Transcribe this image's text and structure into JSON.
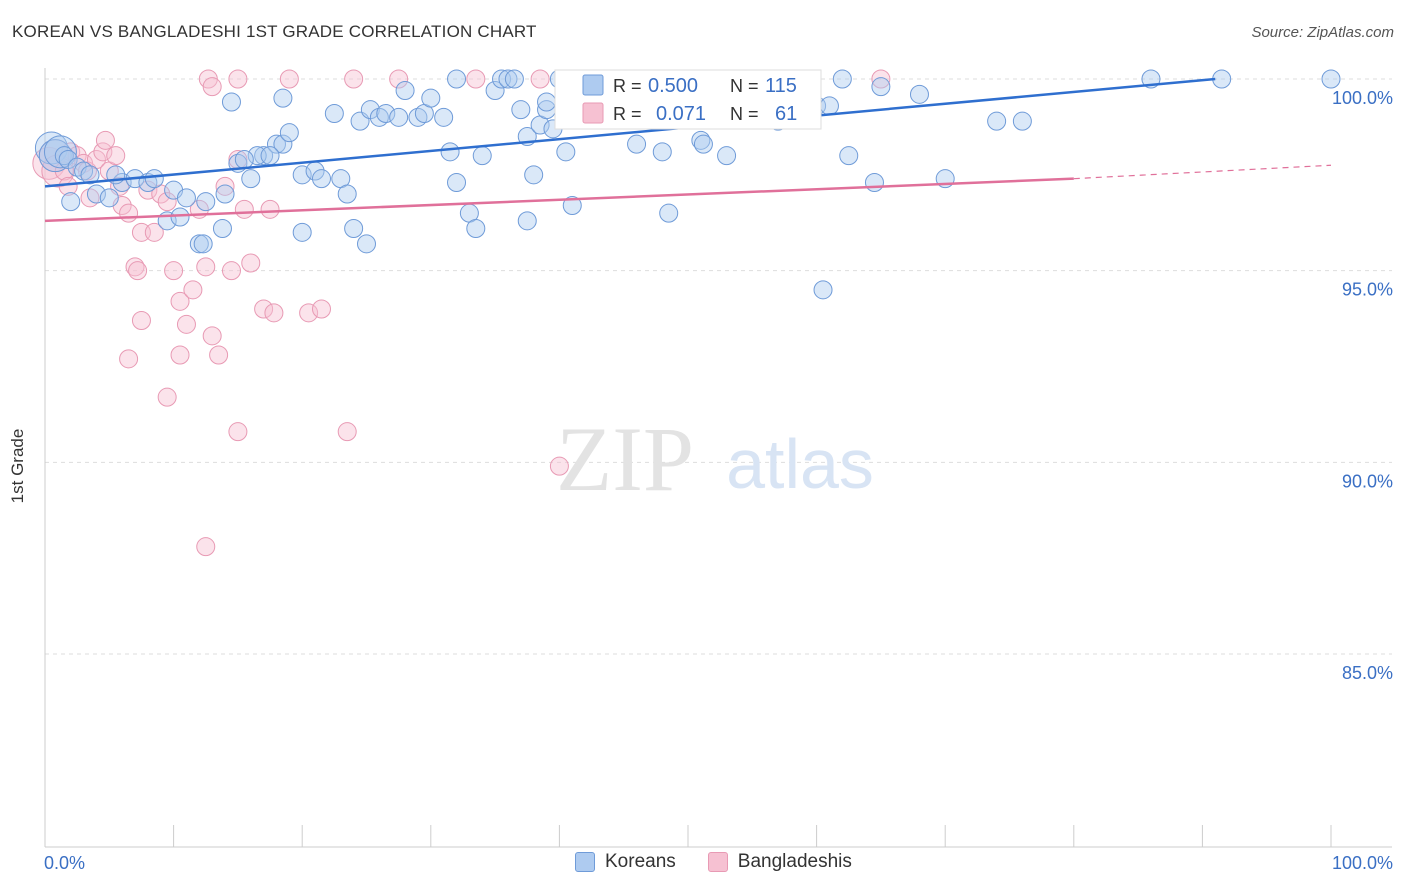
{
  "title": "KOREAN VS BANGLADESHI 1ST GRADE CORRELATION CHART",
  "source": "Source: ZipAtlas.com",
  "colors": {
    "korean_fill": "#aecbf0",
    "korean_stroke": "#6f9bd8",
    "korean_line": "#2f6fcf",
    "bangladeshi_fill": "#f6c1d2",
    "bangladeshi_stroke": "#e89ab4",
    "bangladeshi_line": "#e0709a",
    "axis_text": "#3a6fc4",
    "grid": "#dddddd"
  },
  "stats_legend": {
    "korean": {
      "r_label": "R =",
      "r_value": "0.500",
      "n_label": "N =",
      "n_value": "115"
    },
    "bangladeshi": {
      "r_label": "R =",
      "r_value": "0.071",
      "n_label": "N =",
      "n_value": "61"
    }
  },
  "watermark": {
    "zip": "ZIP",
    "atlas": "atlas"
  },
  "chart_data": {
    "type": "scatter",
    "title": "KOREAN VS BANGLADESHI 1ST GRADE CORRELATION CHART",
    "xlabel": "",
    "ylabel": "1st Grade",
    "xlim": [
      0,
      100
    ],
    "ylim": [
      80.5,
      100.8
    ],
    "x_tick_labels": [
      "0.0%",
      "100.0%"
    ],
    "y_ticks": [
      100,
      95,
      90,
      85
    ],
    "y_tick_labels": [
      "100.0%",
      "95.0%",
      "90.0%",
      "85.0%"
    ],
    "grid": true,
    "legend_position": "bottom",
    "series": [
      {
        "name": "Koreans",
        "r": 0.5,
        "n": 115,
        "trend": {
          "x": [
            0,
            91
          ],
          "y": [
            97.2,
            100.0
          ]
        },
        "points": [
          [
            0.5,
            98.2
          ],
          [
            0.8,
            98.0
          ],
          [
            1.2,
            98.1
          ],
          [
            1.5,
            98.0
          ],
          [
            1.8,
            97.9
          ],
          [
            2.5,
            97.7
          ],
          [
            3.0,
            97.6
          ],
          [
            3.5,
            97.5
          ],
          [
            2.0,
            96.8
          ],
          [
            4.0,
            97.0
          ],
          [
            5.0,
            96.9
          ],
          [
            6.0,
            97.3
          ],
          [
            5.5,
            97.5
          ],
          [
            7.0,
            97.4
          ],
          [
            8.0,
            97.3
          ],
          [
            8.5,
            97.4
          ],
          [
            10.0,
            97.1
          ],
          [
            11.0,
            96.9
          ],
          [
            12.5,
            96.8
          ],
          [
            14.0,
            97.0
          ],
          [
            15.0,
            97.8
          ],
          [
            16.0,
            97.4
          ],
          [
            17.0,
            98.0
          ],
          [
            18.0,
            98.3
          ],
          [
            18.5,
            98.3
          ],
          [
            19.0,
            98.6
          ],
          [
            20.0,
            97.5
          ],
          [
            21.0,
            97.6
          ],
          [
            21.5,
            97.4
          ],
          [
            23.0,
            97.4
          ],
          [
            23.5,
            97.0
          ],
          [
            24.0,
            96.1
          ],
          [
            9.5,
            96.3
          ],
          [
            10.5,
            96.4
          ],
          [
            12.0,
            95.7
          ],
          [
            12.3,
            95.7
          ],
          [
            13.8,
            96.1
          ],
          [
            16.5,
            98.0
          ],
          [
            15.5,
            97.9
          ],
          [
            17.5,
            98.0
          ],
          [
            20.0,
            96.0
          ],
          [
            25.0,
            95.7
          ],
          [
            22.5,
            99.1
          ],
          [
            24.5,
            98.9
          ],
          [
            25.3,
            99.2
          ],
          [
            26.0,
            99.0
          ],
          [
            26.5,
            99.1
          ],
          [
            27.5,
            99.0
          ],
          [
            28.0,
            99.7
          ],
          [
            29.0,
            99.0
          ],
          [
            29.5,
            99.1
          ],
          [
            30.0,
            99.5
          ],
          [
            31.0,
            99.0
          ],
          [
            31.5,
            98.1
          ],
          [
            32.0,
            100.0
          ],
          [
            33.0,
            96.5
          ],
          [
            33.5,
            96.1
          ],
          [
            34.0,
            98.0
          ],
          [
            35.0,
            99.7
          ],
          [
            35.5,
            100.0
          ],
          [
            36.0,
            100.0
          ],
          [
            36.5,
            100.0
          ],
          [
            37.0,
            99.2
          ],
          [
            37.5,
            98.5
          ],
          [
            37.5,
            96.3
          ],
          [
            38.0,
            97.5
          ],
          [
            38.5,
            98.8
          ],
          [
            39.0,
            99.2
          ],
          [
            39.5,
            98.7
          ],
          [
            39.0,
            99.4
          ],
          [
            40.5,
            98.1
          ],
          [
            41.0,
            96.7
          ],
          [
            40.0,
            100.0
          ],
          [
            42.5,
            100.0
          ],
          [
            43.0,
            99.0
          ],
          [
            44.0,
            99.0
          ],
          [
            45.0,
            99.2
          ],
          [
            46.0,
            98.3
          ],
          [
            46.5,
            99.0
          ],
          [
            48.0,
            98.1
          ],
          [
            48.5,
            96.5
          ],
          [
            49.0,
            100.0
          ],
          [
            50.0,
            99.0
          ],
          [
            51.0,
            98.4
          ],
          [
            51.2,
            98.3
          ],
          [
            52.0,
            99.1
          ],
          [
            53.0,
            99.5
          ],
          [
            53.5,
            100.0
          ],
          [
            55.0,
            99.2
          ],
          [
            56.0,
            100.0
          ],
          [
            56.5,
            99.0
          ],
          [
            57.0,
            98.9
          ],
          [
            58.0,
            99.5
          ],
          [
            59.5,
            100.0
          ],
          [
            60.0,
            99.3
          ],
          [
            61.0,
            99.3
          ],
          [
            62.0,
            100.0
          ],
          [
            65.0,
            99.8
          ],
          [
            68.0,
            99.6
          ],
          [
            70.0,
            97.4
          ],
          [
            74.0,
            98.9
          ],
          [
            76.0,
            98.9
          ],
          [
            86.0,
            100.0
          ],
          [
            91.5,
            100.0
          ],
          [
            100.0,
            100.0
          ],
          [
            53.0,
            98.0
          ],
          [
            62.5,
            98.0
          ],
          [
            64.5,
            97.3
          ],
          [
            60.5,
            94.5
          ],
          [
            32.0,
            97.3
          ],
          [
            14.5,
            99.4
          ],
          [
            18.5,
            99.5
          ]
        ]
      },
      {
        "name": "Bangladeshis",
        "r": 0.071,
        "n": 61,
        "trend": {
          "x": [
            0,
            80
          ],
          "y": [
            96.3,
            97.4
          ]
        },
        "trend_dashed": {
          "x": [
            80,
            100
          ],
          "y": [
            97.4,
            97.75
          ]
        },
        "points": [
          [
            0.3,
            97.8
          ],
          [
            0.8,
            98.0
          ],
          [
            1.0,
            97.6
          ],
          [
            1.5,
            97.6
          ],
          [
            1.8,
            97.2
          ],
          [
            2.0,
            98.1
          ],
          [
            2.5,
            98.0
          ],
          [
            3.0,
            97.8
          ],
          [
            3.3,
            97.6
          ],
          [
            3.5,
            96.9
          ],
          [
            4.0,
            97.9
          ],
          [
            4.5,
            98.1
          ],
          [
            4.7,
            98.4
          ],
          [
            5.0,
            97.6
          ],
          [
            5.5,
            98.0
          ],
          [
            5.8,
            97.2
          ],
          [
            6.0,
            96.7
          ],
          [
            6.5,
            96.5
          ],
          [
            7.0,
            95.1
          ],
          [
            7.2,
            95.0
          ],
          [
            7.5,
            96.0
          ],
          [
            8.0,
            97.1
          ],
          [
            8.5,
            96.0
          ],
          [
            9.0,
            97.0
          ],
          [
            9.5,
            96.8
          ],
          [
            10.0,
            95.0
          ],
          [
            10.5,
            94.2
          ],
          [
            11.0,
            93.6
          ],
          [
            11.5,
            94.5
          ],
          [
            12.0,
            96.6
          ],
          [
            12.5,
            95.1
          ],
          [
            13.0,
            93.3
          ],
          [
            13.5,
            92.8
          ],
          [
            14.0,
            97.2
          ],
          [
            14.5,
            95.0
          ],
          [
            15.0,
            97.9
          ],
          [
            15.5,
            96.6
          ],
          [
            16.0,
            95.2
          ],
          [
            17.0,
            94.0
          ],
          [
            17.5,
            96.6
          ],
          [
            6.5,
            92.7
          ],
          [
            7.5,
            93.7
          ],
          [
            9.5,
            91.7
          ],
          [
            10.5,
            92.8
          ],
          [
            15.0,
            90.8
          ],
          [
            23.5,
            90.8
          ],
          [
            17.8,
            93.9
          ],
          [
            20.5,
            93.9
          ],
          [
            21.5,
            94.0
          ],
          [
            12.5,
            87.8
          ],
          [
            40.0,
            89.9
          ],
          [
            12.7,
            100.0
          ],
          [
            13.0,
            99.8
          ],
          [
            15.0,
            100.0
          ],
          [
            19.0,
            100.0
          ],
          [
            24.0,
            100.0
          ],
          [
            27.5,
            100.0
          ],
          [
            33.5,
            100.0
          ],
          [
            38.5,
            100.0
          ],
          [
            46.5,
            100.0
          ],
          [
            65.0,
            100.0
          ]
        ]
      }
    ]
  }
}
